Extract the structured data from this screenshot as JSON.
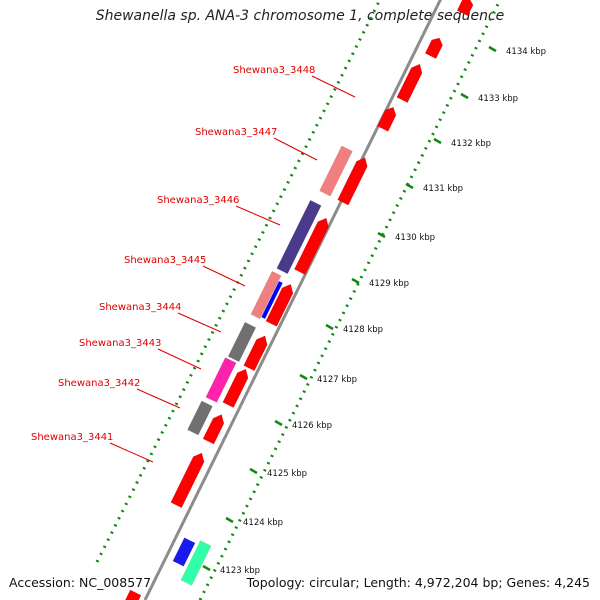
{
  "title": "Shewanella sp. ANA-3 chromosome 1, complete sequence",
  "accession": "Accession: NC_008577",
  "stats": "Topology: circular; Length: 4,972,204 bp; Genes: 4,245",
  "colors": {
    "forward_gene": "#ff0000",
    "backbone": "#8c8c8c",
    "ticks": "#118811",
    "label_line": "#e00000"
  },
  "scale_ticks": [
    "4123 kbp",
    "4124 kbp",
    "4125 kbp",
    "4126 kbp",
    "4127 kbp",
    "4128 kbp",
    "4129 kbp",
    "4130 kbp",
    "4131 kbp",
    "4132 kbp",
    "4133 kbp",
    "4134 kbp"
  ],
  "gene_labels": [
    "Shewana3_3448",
    "Shewana3_3447",
    "Shewana3_3446",
    "Shewana3_3445",
    "Shewana3_3444",
    "Shewana3_3443",
    "Shewana3_3442",
    "Shewana3_3441"
  ]
}
